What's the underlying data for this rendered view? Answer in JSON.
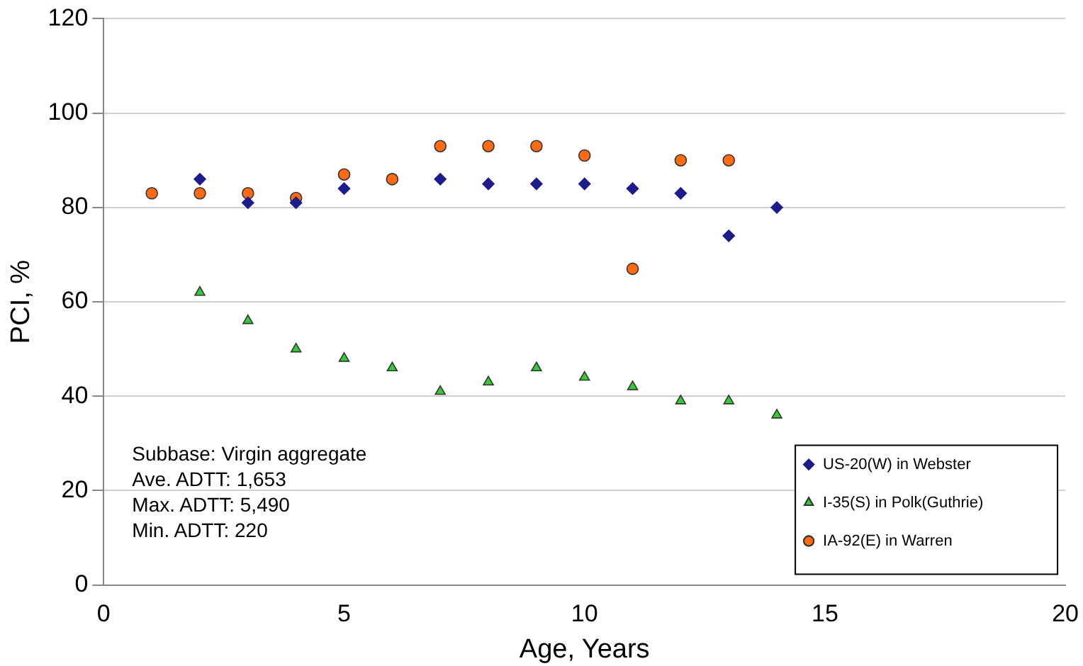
{
  "chart_data": {
    "type": "scatter",
    "xlabel": "Age, Years",
    "ylabel": "PCI, %",
    "xlim": [
      0,
      20
    ],
    "xticks": [
      0,
      5,
      10,
      15,
      20
    ],
    "ylim": [
      0,
      120
    ],
    "yticks": [
      0,
      20,
      40,
      60,
      80,
      100,
      120
    ],
    "grid": "y",
    "legend": "bottom right",
    "annotations": [
      "Subbase: Virgin aggregate",
      "Ave. ADTT: 1,653",
      "Max. ADTT: 5,490",
      "Min. ADTT: 220"
    ],
    "series": [
      {
        "name": "US-20(W) in Webster",
        "color": "#1c1c8c",
        "marker": "diamond",
        "x": [
          2,
          3,
          4,
          5,
          7,
          8,
          9,
          10,
          11,
          12,
          13,
          14
        ],
        "values": [
          86,
          81,
          81,
          84,
          86,
          85,
          85,
          85,
          84,
          83,
          74,
          80
        ]
      },
      {
        "name": "I-35(S) in Polk(Guthrie)",
        "color": "#33cc33",
        "marker": "triangle",
        "x": [
          2,
          3,
          4,
          5,
          6,
          7,
          8,
          9,
          10,
          11,
          12,
          13,
          14
        ],
        "values": [
          62,
          56,
          50,
          48,
          46,
          41,
          43,
          46,
          44,
          42,
          39,
          39,
          36
        ]
      },
      {
        "name": "IA-92(E) in Warren",
        "color": "#ff6a13",
        "marker": "circle",
        "x": [
          1,
          2,
          3,
          4,
          5,
          6,
          7,
          8,
          9,
          10,
          11,
          12,
          13
        ],
        "values": [
          83,
          83,
          83,
          82,
          87,
          86,
          93,
          93,
          93,
          91,
          67,
          90,
          90
        ]
      }
    ]
  }
}
